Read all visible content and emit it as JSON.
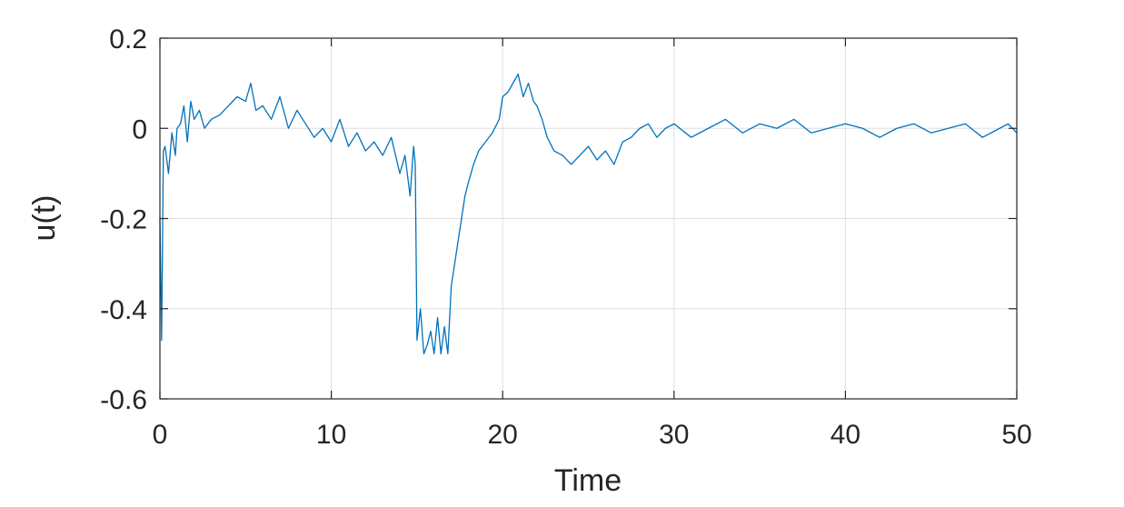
{
  "chart_data": {
    "type": "line",
    "title": "",
    "xlabel": "Time",
    "ylabel": "u(t)",
    "xlim": [
      0,
      50
    ],
    "ylim": [
      -0.6,
      0.2
    ],
    "xticks": [
      "0",
      "10",
      "20",
      "30",
      "40",
      "50"
    ],
    "yticks": [
      "-0.6",
      "-0.4",
      "-0.2",
      "0",
      "0.2"
    ],
    "grid": true,
    "box": true,
    "legend": "none",
    "series": [
      {
        "color": "#0072BD",
        "x": [
          0,
          0.1,
          0.2,
          0.3,
          0.5,
          0.7,
          0.9,
          1.0,
          1.2,
          1.4,
          1.6,
          1.8,
          2.0,
          2.3,
          2.6,
          3.0,
          3.5,
          4.0,
          4.5,
          5.0,
          5.3,
          5.6,
          6.0,
          6.5,
          7.0,
          7.5,
          8.0,
          8.5,
          9.0,
          9.5,
          10.0,
          10.5,
          11.0,
          11.5,
          12.0,
          12.5,
          13.0,
          13.5,
          14.0,
          14.3,
          14.6,
          14.8,
          14.9,
          15.0,
          15.2,
          15.4,
          15.6,
          15.8,
          16.0,
          16.2,
          16.4,
          16.6,
          16.8,
          17.0,
          17.2,
          17.4,
          17.6,
          17.8,
          18.0,
          18.3,
          18.6,
          19.0,
          19.4,
          19.8,
          20.0,
          20.3,
          20.6,
          20.9,
          21.2,
          21.5,
          21.8,
          22.0,
          22.3,
          22.6,
          23.0,
          23.5,
          24.0,
          24.5,
          25.0,
          25.5,
          26.0,
          26.5,
          27.0,
          27.5,
          28.0,
          28.5,
          29.0,
          29.5,
          30.0,
          31.0,
          32.0,
          33.0,
          34.0,
          35.0,
          36.0,
          37.0,
          38.0,
          39.0,
          40.0,
          41.0,
          42.0,
          43.0,
          44.0,
          45.0,
          46.0,
          47.0,
          48.0,
          49.0,
          49.5,
          50.0
        ],
        "y": [
          -0.2,
          -0.47,
          -0.05,
          -0.04,
          -0.1,
          -0.01,
          -0.06,
          0.0,
          0.01,
          0.05,
          -0.03,
          0.06,
          0.02,
          0.04,
          0.0,
          0.02,
          0.03,
          0.05,
          0.07,
          0.06,
          0.1,
          0.04,
          0.05,
          0.02,
          0.07,
          0.0,
          0.04,
          0.01,
          -0.02,
          0.0,
          -0.03,
          0.02,
          -0.04,
          -0.01,
          -0.05,
          -0.03,
          -0.06,
          -0.02,
          -0.1,
          -0.06,
          -0.15,
          -0.04,
          -0.08,
          -0.47,
          -0.4,
          -0.5,
          -0.48,
          -0.45,
          -0.5,
          -0.42,
          -0.5,
          -0.44,
          -0.5,
          -0.35,
          -0.3,
          -0.25,
          -0.2,
          -0.15,
          -0.12,
          -0.08,
          -0.05,
          -0.03,
          -0.01,
          0.02,
          0.07,
          0.08,
          0.1,
          0.12,
          0.07,
          0.1,
          0.06,
          0.05,
          0.02,
          -0.02,
          -0.05,
          -0.06,
          -0.08,
          -0.06,
          -0.04,
          -0.07,
          -0.05,
          -0.08,
          -0.03,
          -0.02,
          0.0,
          0.01,
          -0.02,
          0.0,
          0.01,
          -0.02,
          0.0,
          0.02,
          -0.01,
          0.01,
          0.0,
          0.02,
          -0.01,
          0.0,
          0.01,
          0.0,
          -0.02,
          0.0,
          0.01,
          -0.01,
          0.0,
          0.01,
          -0.02,
          0.0,
          0.01,
          -0.01
        ]
      }
    ]
  }
}
